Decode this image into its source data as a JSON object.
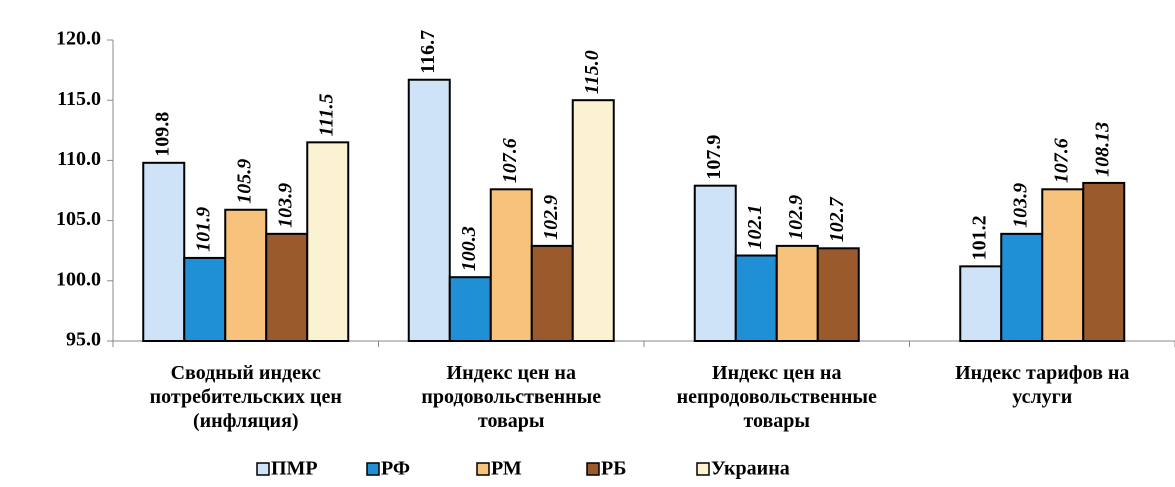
{
  "chart_data": {
    "type": "bar",
    "categories": [
      "Сводный индекс\nпотребительских цен\n(инфляция)",
      "Индекс цен на\nпродовольственные\nтовары",
      "Индекс цен на\nнепродовольственные\nтовары",
      "Индекс  тарифов на\nуслуги"
    ],
    "series": [
      {
        "name": "ПМР",
        "color": "#cfe3f8",
        "values": [
          109.8,
          116.7,
          107.9,
          101.2
        ],
        "value_labels": [
          "109.8",
          "116.7",
          "107.9",
          "101.2"
        ]
      },
      {
        "name": "РФ",
        "color": "#1f8fd6",
        "values": [
          101.9,
          100.3,
          102.1,
          103.9
        ],
        "value_labels": [
          "101.9",
          "100.3",
          "102.1",
          "103.9"
        ]
      },
      {
        "name": "РМ",
        "color": "#f6c27c",
        "values": [
          105.9,
          107.6,
          102.9,
          107.6
        ],
        "value_labels": [
          "105.9",
          "107.6",
          "102.9",
          "107.6"
        ]
      },
      {
        "name": "РБ",
        "color": "#9a5a2c",
        "values": [
          103.9,
          102.9,
          102.7,
          108.13
        ],
        "value_labels": [
          "103.9",
          "102.9",
          "102.7",
          "108.13"
        ]
      },
      {
        "name": "Украина",
        "color": "#fbf2d2",
        "values": [
          111.5,
          115.0,
          null,
          null
        ],
        "value_labels": [
          "111.5",
          "115.0",
          null,
          null
        ]
      }
    ],
    "ylim": [
      95,
      120
    ],
    "yticks": [
      {
        "value": 95,
        "label": "95.0"
      },
      {
        "value": 100,
        "label": "100.0"
      },
      {
        "value": 105,
        "label": "105.0"
      },
      {
        "value": 110,
        "label": "110.0"
      },
      {
        "value": 115,
        "label": "115.0"
      },
      {
        "value": 120,
        "label": "120.0"
      }
    ],
    "legend": "bottom"
  }
}
